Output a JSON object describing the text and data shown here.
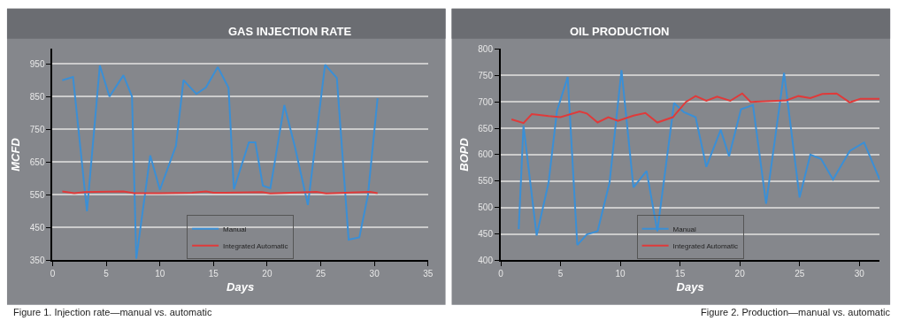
{
  "chart_data": [
    {
      "type": "line",
      "title": "GAS INJECTION RATE",
      "xlabel": "Days",
      "ylabel": "MCFD",
      "xlim": [
        0,
        35
      ],
      "xticks": [
        0,
        5,
        10,
        15,
        20,
        25,
        30,
        35
      ],
      "ylim": [
        350,
        995
      ],
      "yticks": [
        350,
        450,
        550,
        650,
        750,
        850,
        950
      ],
      "grid": "y",
      "legend": "bottom",
      "marker": "none",
      "line_style": "solid",
      "annotations": [
        "Figure 1. Injection rate—manual vs. automatic"
      ],
      "series": [
        {
          "name": "Manual",
          "color": "#3a8fd6",
          "x": [
            0.9,
            1.9,
            3.2,
            4.4,
            5.3,
            6.6,
            7.4,
            7.8,
            9.1,
            10,
            11.5,
            12.2,
            13.4,
            14.3,
            15.4,
            16.4,
            16.9,
            18.3,
            18.9,
            19.6,
            20.3,
            21.6,
            22.6,
            23.8,
            25.4,
            26.5,
            27.6,
            28.6,
            29.4,
            30.3
          ],
          "values": [
            900,
            910,
            500,
            945,
            850,
            915,
            850,
            355,
            670,
            565,
            700,
            900,
            858,
            878,
            940,
            877,
            567,
            710,
            710,
            578,
            570,
            824,
            695,
            519,
            947,
            907,
            413,
            420,
            549,
            845
          ]
        },
        {
          "name": "Integrated Automatic",
          "color": "#e03a3a",
          "x": [
            0.9,
            2,
            3,
            4,
            6.6,
            7.6,
            10,
            13,
            14.3,
            15,
            19.5,
            20.3,
            24.6,
            25.5,
            29.6,
            30.3
          ],
          "values": [
            560,
            555,
            558,
            559,
            560,
            555,
            555,
            556,
            560,
            556,
            558,
            554,
            559,
            554,
            559,
            555
          ]
        }
      ]
    },
    {
      "type": "line",
      "title": "OIL PRODUCTION",
      "xlabel": "Days",
      "ylabel": "BOPD",
      "xlim": [
        0,
        31.7
      ],
      "xticks": [
        0,
        5,
        10,
        15,
        20,
        25,
        30
      ],
      "ylim": [
        400,
        800
      ],
      "yticks": [
        400,
        450,
        500,
        550,
        600,
        650,
        700,
        750,
        800
      ],
      "grid": "y",
      "legend": "bottom",
      "marker": "none",
      "line_style": "solid",
      "annotations": [
        "Figure 2. Production—manual vs. automatic"
      ],
      "series": [
        {
          "name": "Manual",
          "color": "#3a8fd6",
          "x": [
            1.5,
            1.9,
            3,
            4,
            4.7,
            5.6,
            6.4,
            7.2,
            8.1,
            9.1,
            10.1,
            11.1,
            12.2,
            13.1,
            14.5,
            15.3,
            16.3,
            17.2,
            18.4,
            19.1,
            20.1,
            21.1,
            22.2,
            23.7,
            25,
            25.9,
            26.8,
            27.8,
            29.2,
            30.4,
            31.7
          ],
          "values": [
            459,
            655,
            447,
            547,
            683,
            747,
            429,
            449,
            455,
            547,
            760,
            538,
            569,
            455,
            698,
            681,
            671,
            577,
            647,
            597,
            686,
            694,
            507,
            755,
            519,
            600,
            592,
            553,
            607,
            623,
            553
          ]
        },
        {
          "name": "Integrated Automatic",
          "color": "#e03a3a",
          "x": [
            0.9,
            1.9,
            2.6,
            4,
            5,
            6.6,
            7.2,
            8.1,
            9,
            9.8,
            11.1,
            12.1,
            13.1,
            14.4,
            15.5,
            16.3,
            17.2,
            18.1,
            19.2,
            20.2,
            20.9,
            23.9,
            24.9,
            25.9,
            26.9,
            28.1,
            29.2,
            30.1,
            31.7
          ],
          "values": [
            667,
            660,
            677,
            673,
            671,
            682,
            678,
            661,
            671,
            664,
            674,
            679,
            661,
            671,
            700,
            711,
            702,
            710,
            702,
            716,
            700,
            703,
            711,
            707,
            715,
            716,
            699,
            706,
            706
          ]
        }
      ]
    }
  ]
}
